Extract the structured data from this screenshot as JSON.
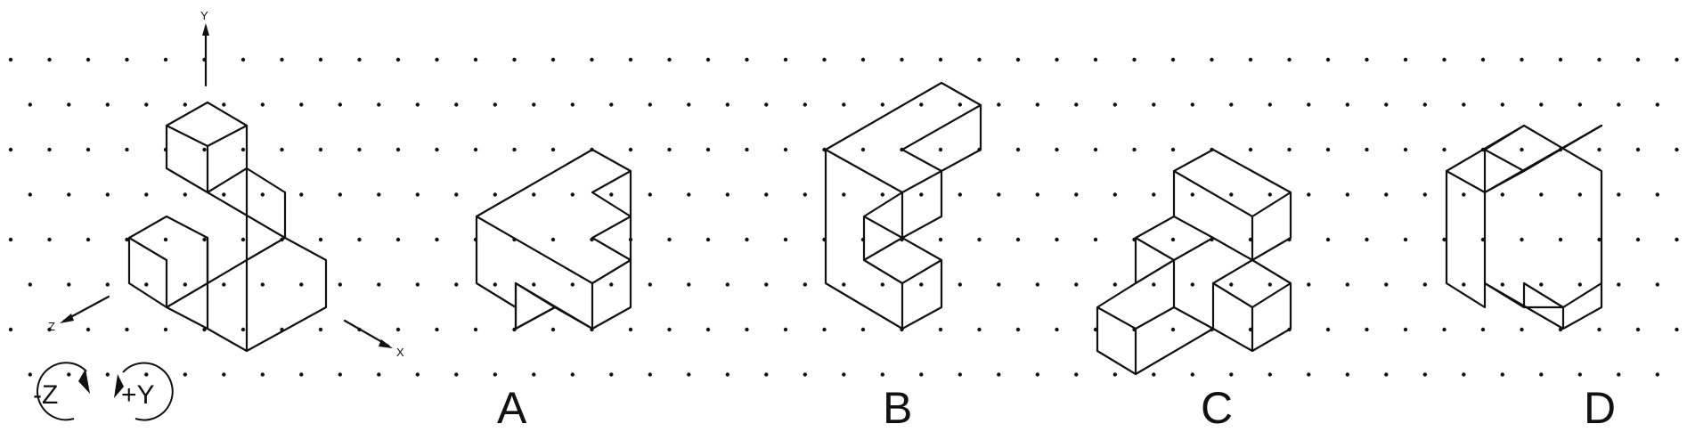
{
  "axes": {
    "y": "Y",
    "z": "Z",
    "x": "X"
  },
  "rotations": [
    "-Z",
    "+Y"
  ],
  "options": [
    "A",
    "B",
    "C",
    "D"
  ],
  "colors": {
    "line": "#111111",
    "background": "#ffffff"
  }
}
